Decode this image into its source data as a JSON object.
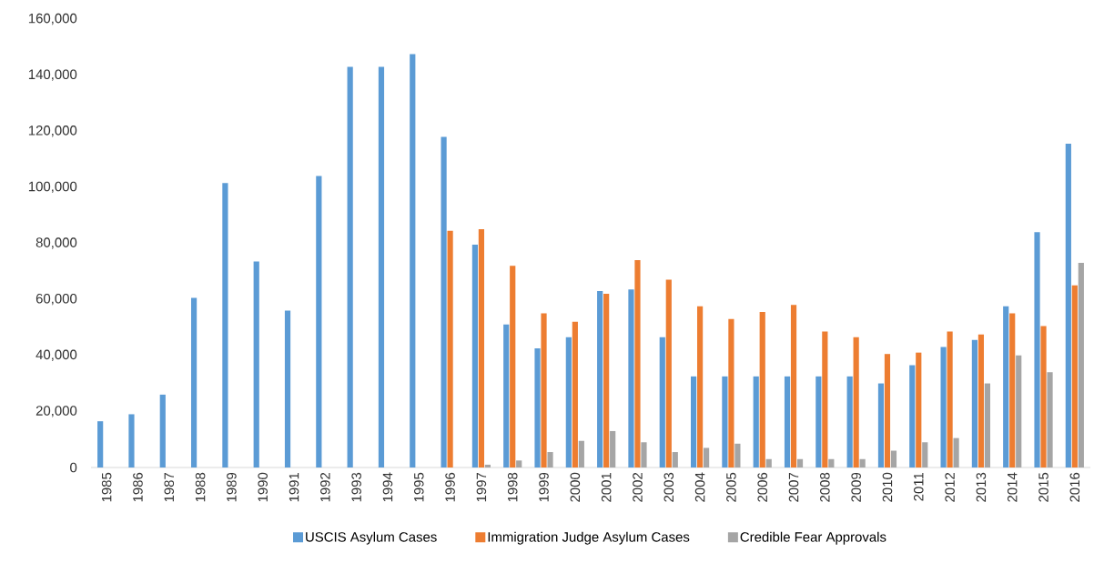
{
  "chart_data": {
    "type": "bar",
    "categories": [
      "1985",
      "1986",
      "1987",
      "1988",
      "1989",
      "1990",
      "1991",
      "1992",
      "1993",
      "1994",
      "1995",
      "1996",
      "1997",
      "1998",
      "1999",
      "2000",
      "2001",
      "2002",
      "2003",
      "2004",
      "2005",
      "2006",
      "2007",
      "2008",
      "2009",
      "2010",
      "2011",
      "2012",
      "2013",
      "2014",
      "2015",
      "2016"
    ],
    "series": [
      {
        "name": "USCIS Asylum Cases",
        "color": "#5b9bd5",
        "values": [
          16500,
          19000,
          26000,
          60500,
          101500,
          73500,
          56000,
          104000,
          143000,
          143000,
          147500,
          118000,
          79500,
          51000,
          42500,
          46500,
          63000,
          63500,
          46500,
          32500,
          32500,
          32500,
          32500,
          32500,
          32500,
          30000,
          36500,
          43000,
          45500,
          57500,
          84000,
          115500
        ]
      },
      {
        "name": "Immigration Judge Asylum Cases",
        "color": "#ed7d31",
        "values": [
          null,
          null,
          null,
          null,
          null,
          null,
          null,
          null,
          null,
          null,
          null,
          84500,
          85000,
          72000,
          55000,
          52000,
          62000,
          74000,
          67000,
          57500,
          53000,
          55500,
          58000,
          48500,
          46500,
          40500,
          41000,
          48500,
          47500,
          55000,
          50500,
          65000
        ]
      },
      {
        "name": "Credible Fear Approvals",
        "color": "#a5a5a5",
        "values": [
          null,
          null,
          null,
          null,
          null,
          null,
          null,
          null,
          null,
          null,
          null,
          null,
          1000,
          2500,
          5500,
          9500,
          13000,
          9000,
          5500,
          7000,
          8500,
          3000,
          3000,
          3000,
          3000,
          6000,
          9000,
          10500,
          30000,
          40000,
          34000,
          73000
        ]
      }
    ],
    "ylim": [
      0,
      160000
    ],
    "yticks": [
      {
        "value": 0,
        "label": "0"
      },
      {
        "value": 20000,
        "label": "20,000"
      },
      {
        "value": 40000,
        "label": "40,000"
      },
      {
        "value": 60000,
        "label": "60,000"
      },
      {
        "value": 80000,
        "label": "80,000"
      },
      {
        "value": 100000,
        "label": "100,000"
      },
      {
        "value": 120000,
        "label": "120,000"
      },
      {
        "value": 140000,
        "label": "140,000"
      },
      {
        "value": 160000,
        "label": "160,000"
      }
    ],
    "legend": "bottom"
  }
}
